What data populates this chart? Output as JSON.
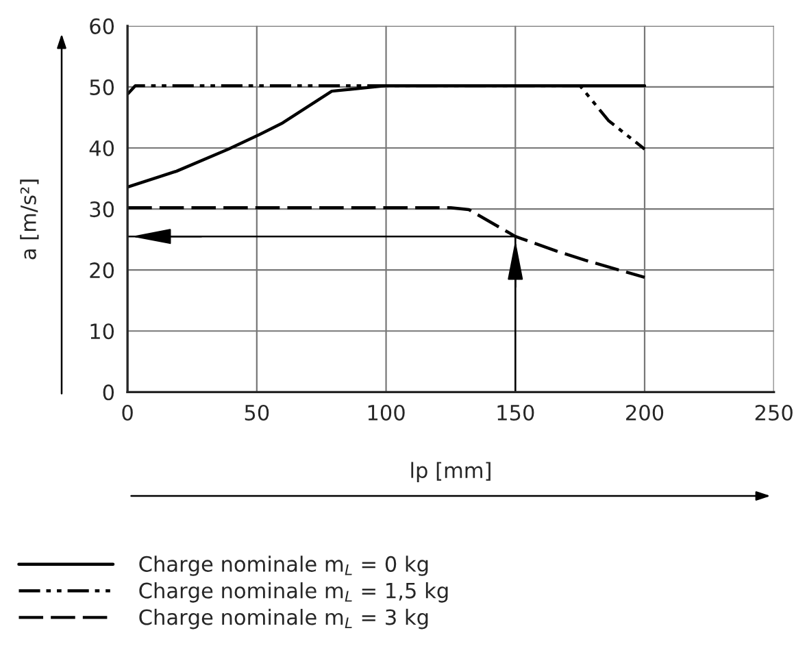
{
  "chart_data": {
    "type": "line",
    "xlabel": "lp [mm]",
    "ylabel": "a [m/s²]",
    "xlim": [
      0,
      250
    ],
    "ylim": [
      0,
      60
    ],
    "xticks": [
      0,
      50,
      100,
      150,
      200,
      250
    ],
    "yticks": [
      0,
      10,
      20,
      30,
      40,
      50,
      60
    ],
    "grid": true,
    "legend": "bottom left",
    "marker": "none",
    "series": [
      {
        "name": "Charge nominale m$_{L}$ = 0 kg",
        "color": "#000000",
        "line_style": "solid",
        "x": [
          0,
          19,
          39,
          51,
          60,
          79,
          100,
          200
        ],
        "values": [
          33.6,
          36.2,
          39.8,
          42.2,
          44.1,
          49.3,
          50.2,
          50.2
        ]
      },
      {
        "name": "Charge nominale m$_{L}$ = 1,5 kg",
        "color": "#000000",
        "line_style": "dashdot",
        "x": [
          0,
          3,
          100,
          175,
          186,
          200
        ],
        "values": [
          48.8,
          50.2,
          50.2,
          50.2,
          44.5,
          39.8
        ]
      },
      {
        "name": "Charge nominale m$_{L}$ = 3 kg",
        "color": "#000000",
        "line_style": "dashed",
        "x": [
          0,
          125,
          132,
          150,
          166,
          177,
          200
        ],
        "values": [
          30.2,
          30.2,
          29.9,
          25.5,
          23.1,
          21.6,
          18.8
        ]
      }
    ],
    "ref_lines": [
      {
        "axis": "x",
        "value": 150
      },
      {
        "axis": "y",
        "value": 25.5
      }
    ]
  }
}
